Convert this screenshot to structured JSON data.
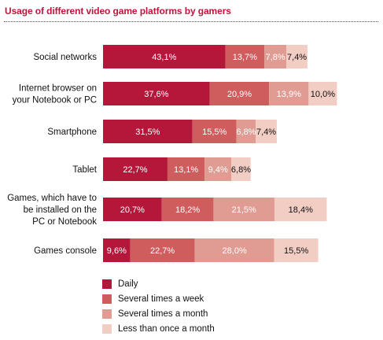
{
  "title": "Usage of different video game platforms by gamers",
  "chart_data": {
    "type": "bar",
    "orientation": "horizontal",
    "stacked": true,
    "title": "Usage of different video game platforms by gamers",
    "xlabel": "",
    "ylabel": "",
    "grid": false,
    "legend_position": "bottom",
    "categories": [
      [
        "Social networks"
      ],
      [
        "Internet browser on",
        "your Notebook or PC"
      ],
      [
        "Smartphone"
      ],
      [
        "Tablet"
      ],
      [
        "Games, which have to",
        "be installed on the",
        "PC or Notebook"
      ],
      [
        "Games console"
      ]
    ],
    "series": [
      {
        "name": "Daily",
        "color": "#b5173a",
        "text_color": "#ffffff",
        "values": [
          43.1,
          37.6,
          31.5,
          22.7,
          20.7,
          9.6
        ],
        "labels": [
          "43,1%",
          "37,6%",
          "31,5%",
          "22,7%",
          "20,7%",
          "9,6%"
        ]
      },
      {
        "name": "Several times a week",
        "color": "#cf5d5d",
        "text_color": "#ffffff",
        "values": [
          13.7,
          20.9,
          15.5,
          13.1,
          18.2,
          22.7
        ],
        "labels": [
          "13,7%",
          "20,9%",
          "15,5%",
          "13,1%",
          "18,2%",
          "22,7%"
        ]
      },
      {
        "name": "Several times a month",
        "color": "#e09c93",
        "text_color": "#ffffff",
        "values": [
          7.8,
          13.9,
          6.8,
          9.4,
          21.5,
          28.0
        ],
        "labels": [
          "7,8%",
          "13,9%",
          "6,8%",
          "9,4%",
          "21,5%",
          "28,0%"
        ]
      },
      {
        "name": "Less than once a month",
        "color": "#f2cdc4",
        "text_color": "#111111",
        "values": [
          7.4,
          10.0,
          7.4,
          6.8,
          18.4,
          15.5
        ],
        "labels": [
          "7,4%",
          "10,0%",
          "7,4%",
          "6,8%",
          "18,4%",
          "15,5%"
        ]
      }
    ]
  }
}
